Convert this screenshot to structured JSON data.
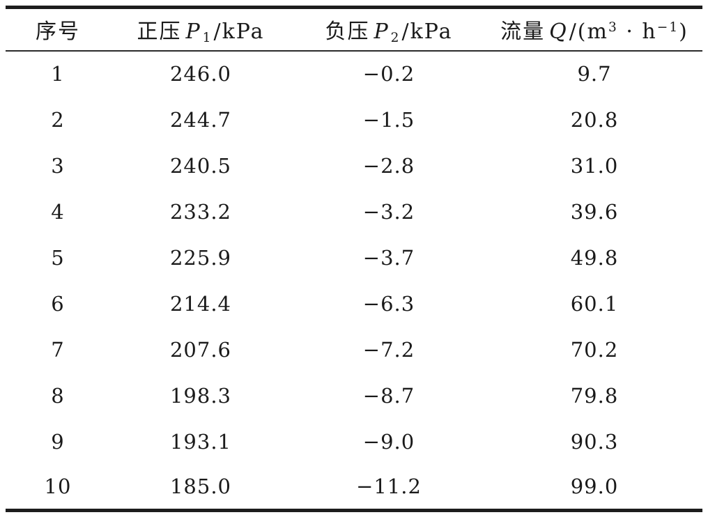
{
  "colors": {
    "background": "#ffffff",
    "text": "#1a1a1a",
    "rule": "#1d1d1d"
  },
  "chart_data": {
    "type": "table",
    "title": "",
    "columns": [
      "序号",
      "正压 P1/kPa",
      "负压 P2/kPa",
      "流量 Q/(m3·h-1)"
    ],
    "rows": [
      [
        "1",
        "246.0",
        "−0.2",
        "9.7"
      ],
      [
        "2",
        "244.7",
        "−1.5",
        "20.8"
      ],
      [
        "3",
        "240.5",
        "−2.8",
        "31.0"
      ],
      [
        "4",
        "233.2",
        "−3.2",
        "39.6"
      ],
      [
        "5",
        "225.9",
        "−3.7",
        "49.8"
      ],
      [
        "6",
        "214.4",
        "−6.3",
        "60.1"
      ],
      [
        "7",
        "207.6",
        "−7.2",
        "70.2"
      ],
      [
        "8",
        "198.3",
        "−8.7",
        "79.8"
      ],
      [
        "9",
        "193.1",
        "−9.0",
        "90.3"
      ],
      [
        "10",
        "185.0",
        "−11.2",
        "99.0"
      ]
    ]
  },
  "table": {
    "columns": [
      {
        "name": "serial",
        "label_segments": [
          {
            "t": "序号"
          }
        ]
      },
      {
        "name": "positive-pressure",
        "label_segments": [
          {
            "t": "正压"
          },
          {
            "t": "P",
            "i": true
          },
          {
            "t": "1",
            "sub": true
          },
          {
            "t": "/kPa"
          }
        ]
      },
      {
        "name": "negative-pressure",
        "label_segments": [
          {
            "t": "负压"
          },
          {
            "t": "P",
            "i": true
          },
          {
            "t": "2",
            "sub": true
          },
          {
            "t": "/kPa"
          }
        ]
      },
      {
        "name": "flow-rate",
        "label_segments": [
          {
            "t": "流量"
          },
          {
            "t": "Q",
            "i": true
          },
          {
            "t": "/(m"
          },
          {
            "t": "3",
            "sup": true
          },
          {
            "t": " · h"
          },
          {
            "t": "−1",
            "sup": true
          },
          {
            "t": ")"
          }
        ]
      }
    ],
    "rows": [
      [
        "1",
        "246.0",
        "−0.2",
        "9.7"
      ],
      [
        "2",
        "244.7",
        "−1.5",
        "20.8"
      ],
      [
        "3",
        "240.5",
        "−2.8",
        "31.0"
      ],
      [
        "4",
        "233.2",
        "−3.2",
        "39.6"
      ],
      [
        "5",
        "225.9",
        "−3.7",
        "49.8"
      ],
      [
        "6",
        "214.4",
        "−6.3",
        "60.1"
      ],
      [
        "7",
        "207.6",
        "−7.2",
        "70.2"
      ],
      [
        "8",
        "198.3",
        "−8.7",
        "79.8"
      ],
      [
        "9",
        "193.1",
        "−9.0",
        "90.3"
      ],
      [
        "10",
        "185.0",
        "−11.2",
        "99.0"
      ]
    ]
  }
}
